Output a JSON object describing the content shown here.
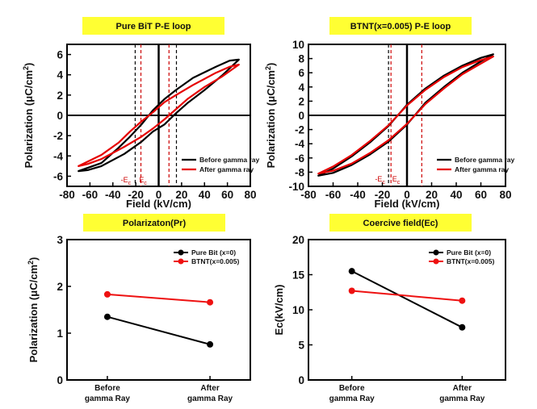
{
  "chart_data": [
    {
      "id": "peloop-bit",
      "type": "line",
      "title": "Pure BiT  P-E loop",
      "title_bg": "#ffff33",
      "xlabel": "Field (kV/cm)",
      "ylabel": "Polarization (μC/cm²)",
      "xlim": [
        -80,
        80
      ],
      "ylim": [
        -7,
        7
      ],
      "xticks": [
        -80,
        -60,
        -40,
        -20,
        0,
        20,
        40,
        60,
        80
      ],
      "yticks": [
        -6,
        -4,
        -2,
        0,
        2,
        4,
        6
      ],
      "xtick_labels": [
        "-80",
        "-60",
        "-40",
        "-20",
        "0",
        "20",
        "40",
        "60",
        "80"
      ],
      "ytick_labels": [
        "-6",
        "-4",
        "-2",
        "0",
        "2",
        "4",
        "6"
      ],
      "legend_position": "bottom-right",
      "vlines": [
        {
          "x": -20.5,
          "color": "#000000",
          "style": "dashed"
        },
        {
          "x": -15.5,
          "color": "#cc0000",
          "style": "dashed"
        },
        {
          "x": 9,
          "color": "#cc0000",
          "style": "dashed"
        },
        {
          "x": 15.5,
          "color": "#000000",
          "style": "dashed"
        }
      ],
      "annotations": [
        {
          "label": "-E",
          "sub": "c",
          "x": -33,
          "y": -6.6,
          "color": "#000000"
        },
        {
          "label": "E",
          "sub": "c",
          "x": -17,
          "y": -6.6,
          "color": "#cc0000"
        }
      ],
      "series": [
        {
          "name": "Before gamma ray",
          "color": "#000000",
          "upper": [
            [
              -70,
              -5.5
            ],
            [
              -50,
              -4.7
            ],
            [
              -35,
              -3.2
            ],
            [
              -25,
              -2.1
            ],
            [
              -15,
              -0.9
            ],
            [
              -5,
              0.5
            ],
            [
              5,
              1.6
            ],
            [
              15,
              2.5
            ],
            [
              30,
              3.7
            ],
            [
              50,
              4.8
            ],
            [
              62,
              5.4
            ],
            [
              70,
              5.5
            ]
          ],
          "lower": [
            [
              70,
              5.5
            ],
            [
              55,
              3.9
            ],
            [
              40,
              2.5
            ],
            [
              25,
              1.2
            ],
            [
              15,
              0.2
            ],
            [
              5,
              -0.9
            ],
            [
              -5,
              -1.6
            ],
            [
              -15,
              -2.6
            ],
            [
              -30,
              -3.8
            ],
            [
              -50,
              -5.0
            ],
            [
              -62,
              -5.4
            ],
            [
              -70,
              -5.5
            ]
          ]
        },
        {
          "name": "After gamma ray",
          "color": "#e60000",
          "upper": [
            [
              -70,
              -5.0
            ],
            [
              -50,
              -3.9
            ],
            [
              -35,
              -2.7
            ],
            [
              -25,
              -1.6
            ],
            [
              -15,
              -0.6
            ],
            [
              -5,
              0.3
            ],
            [
              5,
              1.3
            ],
            [
              15,
              2.0
            ],
            [
              30,
              3.0
            ],
            [
              50,
              4.2
            ],
            [
              62,
              4.8
            ],
            [
              70,
              5.0
            ]
          ],
          "lower": [
            [
              70,
              5.0
            ],
            [
              55,
              3.8
            ],
            [
              40,
              2.8
            ],
            [
              25,
              1.6
            ],
            [
              15,
              0.6
            ],
            [
              5,
              -0.4
            ],
            [
              -5,
              -1.3
            ],
            [
              -15,
              -2.1
            ],
            [
              -30,
              -3.1
            ],
            [
              -50,
              -4.3
            ],
            [
              -62,
              -4.8
            ],
            [
              -70,
              -5.0
            ]
          ]
        }
      ]
    },
    {
      "id": "peloop-btnt",
      "type": "line",
      "title": "BTNT(x=0.005)  P-E loop",
      "title_bg": "#ffff33",
      "xlabel": "Field (kV/cm)",
      "ylabel": "Polarization (μC/cm²)",
      "xlim": [
        -80,
        80
      ],
      "ylim": [
        -10,
        10
      ],
      "xticks": [
        -80,
        -60,
        -40,
        -20,
        0,
        20,
        40,
        60,
        80
      ],
      "yticks": [
        -10,
        -8,
        -6,
        -4,
        -2,
        0,
        2,
        4,
        6,
        8,
        10
      ],
      "xtick_labels": [
        "-80",
        "-60",
        "-40",
        "-20",
        "0",
        "20",
        "40",
        "60",
        "80"
      ],
      "ytick_labels": [
        "-10",
        "-8",
        "-6",
        "-4",
        "-2",
        "0",
        "2",
        "4",
        "6",
        "8",
        "10"
      ],
      "legend_position": "bottom-right",
      "vlines": [
        {
          "x": -15,
          "color": "#000000",
          "style": "dashed"
        },
        {
          "x": -13,
          "color": "#cc0000",
          "style": "dashed"
        },
        {
          "x": 12,
          "color": "#cc0000",
          "style": "dashed"
        }
      ],
      "annotations": [
        {
          "label": "-E",
          "sub": "c",
          "x": -26,
          "y": -9.3,
          "color": "#000000"
        },
        {
          "label": "E",
          "sub": "c",
          "x": -12,
          "y": -9.3,
          "color": "#cc0000"
        }
      ],
      "series": [
        {
          "name": "Before gamma ray",
          "color": "#000000",
          "upper": [
            [
              -72,
              -8.5
            ],
            [
              -60,
              -7.5
            ],
            [
              -45,
              -5.8
            ],
            [
              -30,
              -3.8
            ],
            [
              -15,
              -1.5
            ],
            [
              0,
              1.5
            ],
            [
              15,
              3.8
            ],
            [
              30,
              5.6
            ],
            [
              45,
              7.0
            ],
            [
              60,
              8.1
            ],
            [
              70,
              8.6
            ]
          ],
          "lower": [
            [
              70,
              8.6
            ],
            [
              60,
              7.6
            ],
            [
              45,
              6.0
            ],
            [
              30,
              4.0
            ],
            [
              15,
              1.8
            ],
            [
              0,
              -1.3
            ],
            [
              -15,
              -3.7
            ],
            [
              -30,
              -5.5
            ],
            [
              -45,
              -7.0
            ],
            [
              -60,
              -8.1
            ],
            [
              -72,
              -8.5
            ]
          ]
        },
        {
          "name": "After gamma ray",
          "color": "#e60000",
          "upper": [
            [
              -72,
              -8.2
            ],
            [
              -60,
              -7.2
            ],
            [
              -45,
              -5.6
            ],
            [
              -30,
              -3.6
            ],
            [
              -15,
              -1.4
            ],
            [
              0,
              1.4
            ],
            [
              15,
              3.6
            ],
            [
              30,
              5.4
            ],
            [
              45,
              6.8
            ],
            [
              60,
              7.8
            ],
            [
              70,
              8.3
            ]
          ],
          "lower": [
            [
              70,
              8.3
            ],
            [
              60,
              7.3
            ],
            [
              45,
              5.8
            ],
            [
              30,
              3.8
            ],
            [
              15,
              1.6
            ],
            [
              0,
              -1.2
            ],
            [
              -15,
              -3.5
            ],
            [
              -30,
              -5.3
            ],
            [
              -45,
              -6.8
            ],
            [
              -60,
              -7.8
            ],
            [
              -72,
              -8.2
            ]
          ]
        }
      ]
    },
    {
      "id": "pr-chart",
      "type": "line",
      "title": "Polarizaton(Pr)",
      "title_bg": "#ffff33",
      "xlabel": "",
      "ylabel": "Polarization (μC/cm²)",
      "ylim": [
        0,
        3
      ],
      "yticks": [
        0,
        1,
        2,
        3
      ],
      "ytick_labels": [
        "0",
        "1",
        "2",
        "3"
      ],
      "categories": [
        [
          "Before",
          "gamma Ray"
        ],
        [
          "After",
          "gamma Ray"
        ]
      ],
      "legend_position": "top-right",
      "series": [
        {
          "name": "Pure Bit (x=0)",
          "color": "#000000",
          "values": [
            1.35,
            0.76
          ]
        },
        {
          "name": "BTNT(x=0.005)",
          "color": "#ee1111",
          "values": [
            1.83,
            1.66
          ]
        }
      ]
    },
    {
      "id": "ec-chart",
      "type": "line",
      "title": "Coercive field(Ec)",
      "title_bg": "#ffff33",
      "xlabel": "",
      "ylabel": "Ec(kV/cm)",
      "ylim": [
        0,
        20
      ],
      "yticks": [
        0,
        5,
        10,
        15,
        20
      ],
      "ytick_labels": [
        "0",
        "5",
        "10",
        "15",
        "20"
      ],
      "categories": [
        [
          "Before",
          "gamma Ray"
        ],
        [
          "After",
          "gamma Ray"
        ]
      ],
      "legend_position": "top-right",
      "series": [
        {
          "name": "Pure Bit (x=0)",
          "color": "#000000",
          "values": [
            15.5,
            7.5
          ]
        },
        {
          "name": "BTNT(x=0.005)",
          "color": "#ee1111",
          "values": [
            12.7,
            11.3
          ]
        }
      ]
    }
  ]
}
